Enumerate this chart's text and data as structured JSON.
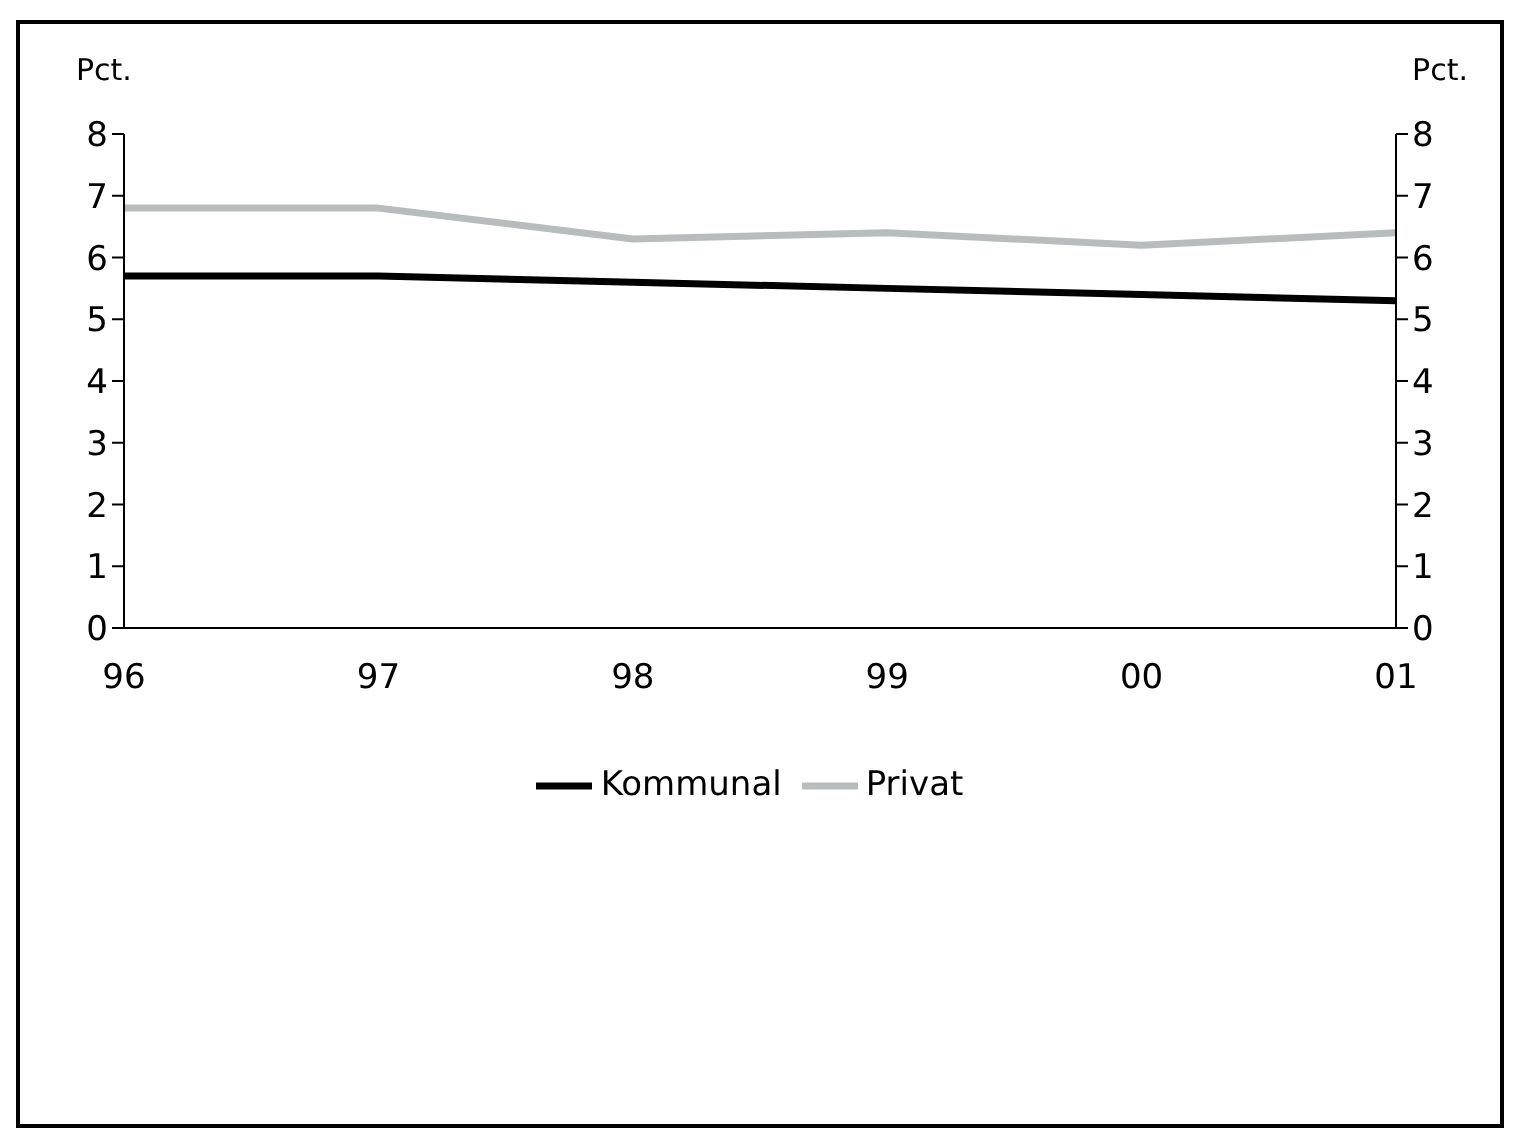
{
  "chart_data": {
    "type": "line",
    "ylabel": "Pct.",
    "y2label": "Pct.",
    "categories": [
      "96",
      "97",
      "98",
      "99",
      "00",
      "01"
    ],
    "series": [
      {
        "name": "Kommunal",
        "color": "#000000",
        "values": [
          5.7,
          5.7,
          5.6,
          5.5,
          5.4,
          5.3
        ]
      },
      {
        "name": "Privat",
        "color": "#b7bcbc",
        "values": [
          6.8,
          6.8,
          6.3,
          6.4,
          6.2,
          6.4
        ]
      }
    ],
    "ylim": [
      0,
      8
    ],
    "yticks": [
      0,
      1,
      2,
      3,
      4,
      5,
      6,
      7,
      8
    ],
    "y2lim": [
      0,
      8
    ],
    "y2ticks": [
      0,
      1,
      2,
      3,
      4,
      5,
      6,
      7,
      8
    ],
    "grid": false,
    "legend": "bottom",
    "marker": "none",
    "line_style": "solid"
  }
}
